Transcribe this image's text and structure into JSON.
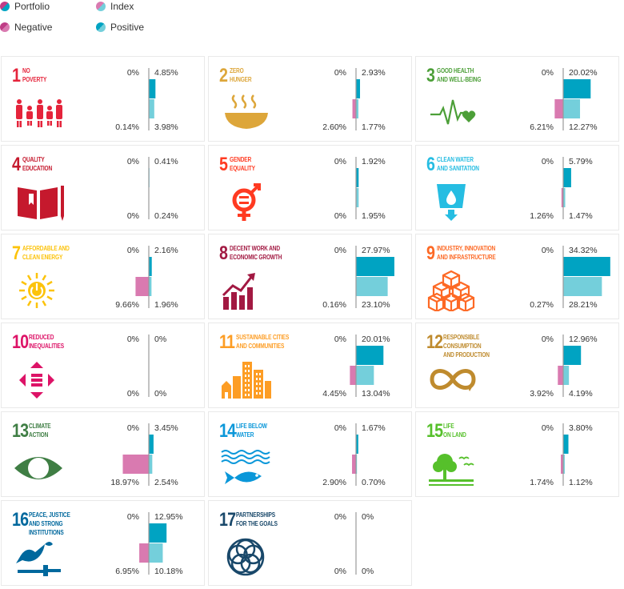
{
  "colors": {
    "positive": "#00a3c2",
    "index_positive": "#74cfdb",
    "negative": "#bf3d86",
    "index_negative": "#d97ab0",
    "axis": "#999999"
  },
  "legend": [
    {
      "key": "portfolio",
      "label": "Portfolio"
    },
    {
      "key": "index",
      "label": "Index"
    },
    {
      "key": "negative",
      "label": "Negative"
    },
    {
      "key": "positive",
      "label": "Positive"
    }
  ],
  "chart_data": {
    "type": "bar",
    "series": [
      {
        "name": "Portfolio"
      },
      {
        "name": "Index"
      }
    ],
    "goals": [
      {
        "number": "1",
        "title": "No\nPoverty",
        "color": "#e5243b",
        "icon": "family-icon",
        "portfolio": {
          "negative": 0,
          "positive": 4.85,
          "negative_label": "0%",
          "positive_label": "4.85%"
        },
        "index": {
          "negative": 0.14,
          "positive": 3.98,
          "negative_label": "0.14%",
          "positive_label": "3.98%"
        }
      },
      {
        "number": "2",
        "title": "Zero\nHunger",
        "color": "#dda63a",
        "icon": "bowl-icon",
        "portfolio": {
          "negative": 0,
          "positive": 2.93,
          "negative_label": "0%",
          "positive_label": "2.93%"
        },
        "index": {
          "negative": 2.6,
          "positive": 1.77,
          "negative_label": "2.60%",
          "positive_label": "1.77%"
        }
      },
      {
        "number": "3",
        "title": "Good Health\nand Well-Being",
        "color": "#4c9f38",
        "icon": "heartbeat-icon",
        "portfolio": {
          "negative": 0,
          "positive": 20.02,
          "negative_label": "0%",
          "positive_label": "20.02%"
        },
        "index": {
          "negative": 6.21,
          "positive": 12.27,
          "negative_label": "6.21%",
          "positive_label": "12.27%"
        }
      },
      {
        "number": "4",
        "title": "Quality\nEducation",
        "color": "#c5192d",
        "icon": "book-icon",
        "portfolio": {
          "negative": 0,
          "positive": 0.41,
          "negative_label": "0%",
          "positive_label": "0.41%"
        },
        "index": {
          "negative": 0,
          "positive": 0.24,
          "negative_label": "0%",
          "positive_label": "0.24%"
        }
      },
      {
        "number": "5",
        "title": "Gender\nEquality",
        "color": "#ff3a21",
        "icon": "gender-icon",
        "portfolio": {
          "negative": 0,
          "positive": 1.92,
          "negative_label": "0%",
          "positive_label": "1.92%"
        },
        "index": {
          "negative": 0,
          "positive": 1.95,
          "negative_label": "0%",
          "positive_label": "1.95%"
        }
      },
      {
        "number": "6",
        "title": "Clean Water\nand Sanitation",
        "color": "#26bde2",
        "icon": "water-glass-icon",
        "portfolio": {
          "negative": 0,
          "positive": 5.79,
          "negative_label": "0%",
          "positive_label": "5.79%"
        },
        "index": {
          "negative": 1.26,
          "positive": 1.47,
          "negative_label": "1.26%",
          "positive_label": "1.47%"
        }
      },
      {
        "number": "7",
        "title": "Affordable and\nClean Energy",
        "color": "#fcc30b",
        "icon": "sun-power-icon",
        "portfolio": {
          "negative": 0,
          "positive": 2.16,
          "negative_label": "0%",
          "positive_label": "2.16%"
        },
        "index": {
          "negative": 9.66,
          "positive": 1.96,
          "negative_label": "9.66%",
          "positive_label": "1.96%"
        }
      },
      {
        "number": "8",
        "title": "Decent Work and\nEconomic Growth",
        "color": "#a21942",
        "icon": "growth-chart-icon",
        "portfolio": {
          "negative": 0,
          "positive": 27.97,
          "negative_label": "0%",
          "positive_label": "27.97%"
        },
        "index": {
          "negative": 0.16,
          "positive": 23.1,
          "negative_label": "0.16%",
          "positive_label": "23.10%"
        }
      },
      {
        "number": "9",
        "title": "Industry, Innovation\nand Infrastructure",
        "color": "#fd6925",
        "icon": "cubes-icon",
        "portfolio": {
          "negative": 0,
          "positive": 34.32,
          "negative_label": "0%",
          "positive_label": "34.32%"
        },
        "index": {
          "negative": 0.27,
          "positive": 28.21,
          "negative_label": "0.27%",
          "positive_label": "28.21%"
        }
      },
      {
        "number": "10",
        "title": "Reduced\nInequalities",
        "color": "#dd1367",
        "icon": "equal-arrows-icon",
        "portfolio": {
          "negative": 0,
          "positive": 0,
          "negative_label": "0%",
          "positive_label": "0%"
        },
        "index": {
          "negative": 0,
          "positive": 0,
          "negative_label": "0%",
          "positive_label": "0%"
        }
      },
      {
        "number": "11",
        "title": "Sustainable Cities\nand Communities",
        "color": "#fd9d24",
        "icon": "city-icon",
        "portfolio": {
          "negative": 0,
          "positive": 20.01,
          "negative_label": "0%",
          "positive_label": "20.01%"
        },
        "index": {
          "negative": 4.45,
          "positive": 13.04,
          "negative_label": "4.45%",
          "positive_label": "13.04%"
        }
      },
      {
        "number": "12",
        "title": "Responsible\nConsumption\nand Production",
        "color": "#bf8b2e",
        "icon": "infinity-icon",
        "portfolio": {
          "negative": 0,
          "positive": 12.96,
          "negative_label": "0%",
          "positive_label": "12.96%"
        },
        "index": {
          "negative": 3.92,
          "positive": 4.19,
          "negative_label": "3.92%",
          "positive_label": "4.19%"
        }
      },
      {
        "number": "13",
        "title": "Climate\nAction",
        "color": "#3f7e44",
        "icon": "earth-eye-icon",
        "portfolio": {
          "negative": 0,
          "positive": 3.45,
          "negative_label": "0%",
          "positive_label": "3.45%"
        },
        "index": {
          "negative": 18.97,
          "positive": 2.54,
          "negative_label": "18.97%",
          "positive_label": "2.54%"
        }
      },
      {
        "number": "14",
        "title": "Life Below\nWater",
        "color": "#0a97d9",
        "icon": "fish-icon",
        "portfolio": {
          "negative": 0,
          "positive": 1.67,
          "negative_label": "0%",
          "positive_label": "1.67%"
        },
        "index": {
          "negative": 2.9,
          "positive": 0.7,
          "negative_label": "2.90%",
          "positive_label": "0.70%"
        }
      },
      {
        "number": "15",
        "title": "Life\nOn Land",
        "color": "#56c02b",
        "icon": "tree-icon",
        "portfolio": {
          "negative": 0,
          "positive": 3.8,
          "negative_label": "0%",
          "positive_label": "3.80%"
        },
        "index": {
          "negative": 1.74,
          "positive": 1.12,
          "negative_label": "1.74%",
          "positive_label": "1.12%"
        }
      },
      {
        "number": "16",
        "title": "Peace, Justice\nand Strong\nInstitutions",
        "color": "#00689d",
        "icon": "dove-gavel-icon",
        "portfolio": {
          "negative": 0,
          "positive": 12.95,
          "negative_label": "0%",
          "positive_label": "12.95%"
        },
        "index": {
          "negative": 6.95,
          "positive": 10.18,
          "negative_label": "6.95%",
          "positive_label": "10.18%"
        }
      },
      {
        "number": "17",
        "title": "Partnerships\nfor the Goals",
        "color": "#19486a",
        "icon": "rings-icon",
        "portfolio": {
          "negative": 0,
          "positive": 0,
          "negative_label": "0%",
          "positive_label": "0%"
        },
        "index": {
          "negative": 0,
          "positive": 0,
          "negative_label": "0%",
          "positive_label": "0%"
        }
      }
    ]
  }
}
